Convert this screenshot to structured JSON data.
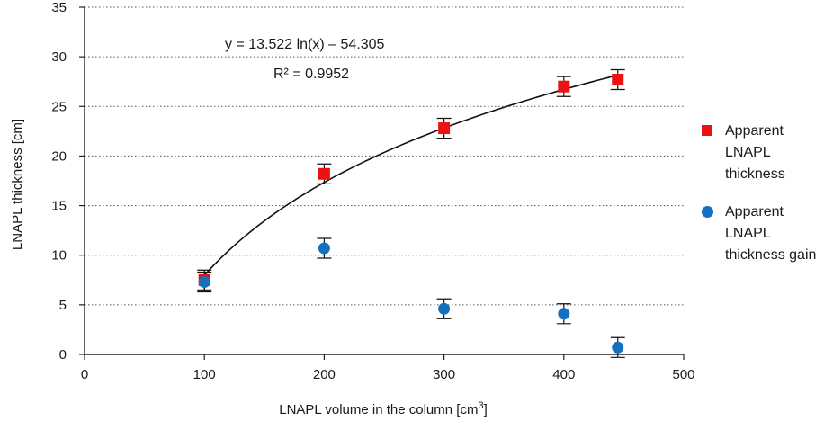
{
  "chart_data": {
    "type": "scatter",
    "xlabel": "LNAPL volume in the column [cm",
    "xlabel_sup": "3",
    "xlabel_end": "]",
    "ylabel": "LNAPL  thickness [cm]",
    "xlim": [
      0,
      500
    ],
    "ylim": [
      0,
      35
    ],
    "x_ticks": [
      0,
      100,
      200,
      300,
      400,
      500
    ],
    "y_ticks": [
      0,
      5,
      10,
      15,
      20,
      25,
      30,
      35
    ],
    "grid": "horizontal-dotted",
    "legend_position": "right",
    "series": [
      {
        "name": "Apparent LNAPL thickness",
        "marker": "square",
        "color": "#ee1111",
        "points": [
          {
            "x": 100,
            "y": 7.5,
            "err": 1.0
          },
          {
            "x": 200,
            "y": 18.2,
            "err": 1.0
          },
          {
            "x": 300,
            "y": 22.8,
            "err": 1.0
          },
          {
            "x": 400,
            "y": 27.0,
            "err": 1.0
          },
          {
            "x": 445,
            "y": 27.7,
            "err": 1.0
          }
        ]
      },
      {
        "name": "Apparent LNAPL thickness gain",
        "marker": "circle",
        "color": "#1570be",
        "points": [
          {
            "x": 100,
            "y": 7.3,
            "err": 1.0
          },
          {
            "x": 200,
            "y": 10.7,
            "err": 1.0
          },
          {
            "x": 300,
            "y": 4.6,
            "err": 1.0
          },
          {
            "x": 400,
            "y": 4.1,
            "err": 1.0
          },
          {
            "x": 445,
            "y": 0.7,
            "err": 1.0
          }
        ]
      }
    ],
    "trendline": {
      "model": "logarithmic",
      "a": 13.522,
      "b": -54.305,
      "x_range": [
        100,
        445
      ],
      "equation": "y = 13.522 ln(x) – 54.305",
      "r_squared": "R² = 0.9952"
    },
    "legend_labels": [
      "Apparent LNAPL thickness",
      "Apparent LNAPL thickness gain"
    ]
  }
}
